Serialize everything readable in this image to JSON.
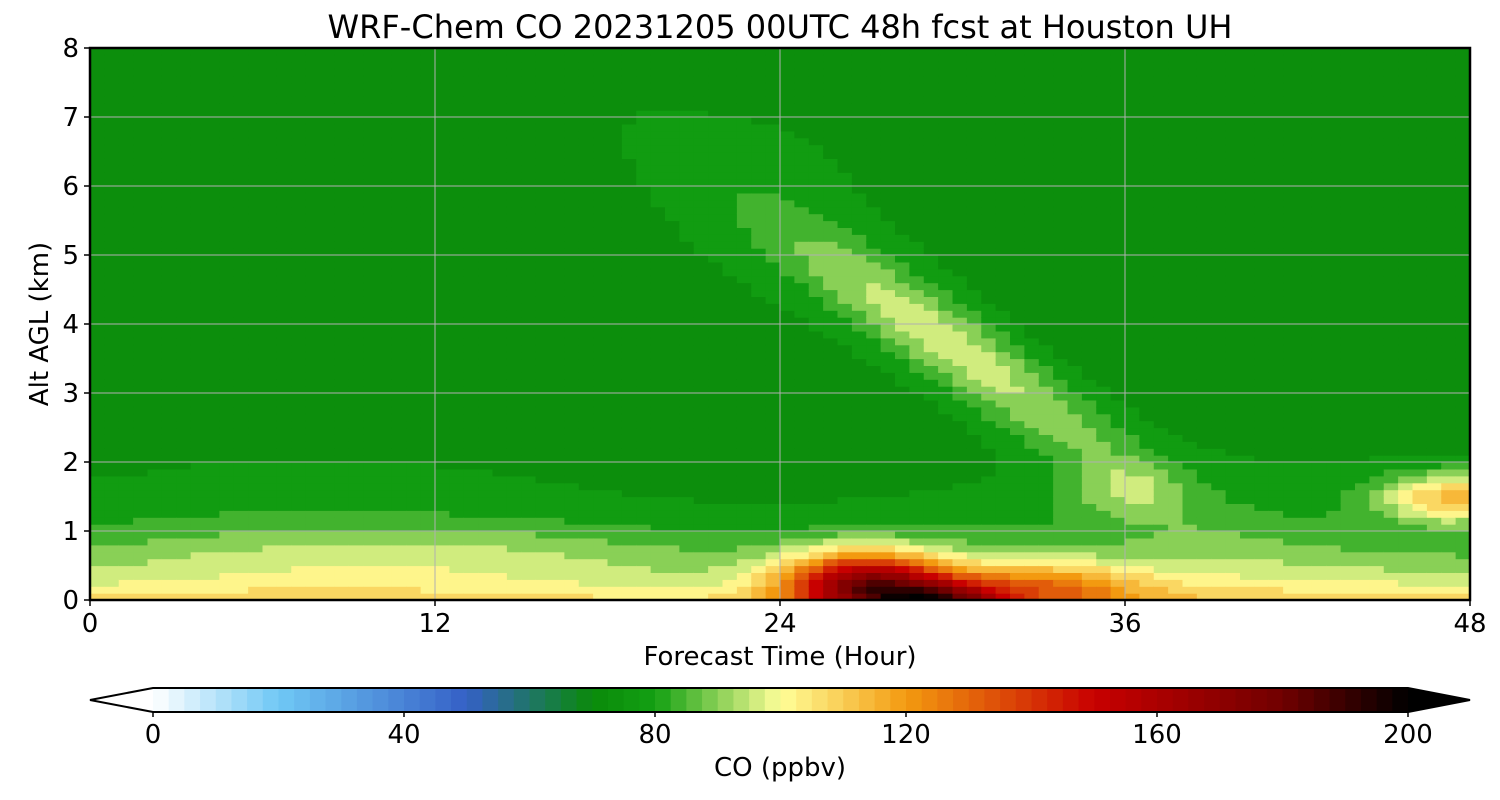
{
  "chart_data": {
    "type": "heatmap",
    "title": "WRF-Chem CO  20231205 00UTC 48h fcst at Houston UH",
    "xlabel": "Forecast Time (Hour)",
    "ylabel": "Alt AGL (km)",
    "xlim": [
      0,
      48
    ],
    "ylim": [
      0,
      8
    ],
    "xticks": [
      0,
      12,
      24,
      36,
      48
    ],
    "yticks": [
      0,
      1,
      2,
      3,
      4,
      5,
      6,
      7,
      8
    ],
    "grid": true,
    "colorbar": {
      "label": "CO  (ppbv)",
      "range": [
        0,
        200
      ],
      "ticks": [
        0,
        40,
        80,
        120,
        160,
        200
      ],
      "extend": "both",
      "stops": [
        {
          "v": 0,
          "c": "#ffffff"
        },
        {
          "v": 20,
          "c": "#6fc8f5"
        },
        {
          "v": 50,
          "c": "#3560c6"
        },
        {
          "v": 70,
          "c": "#0a8a0a"
        },
        {
          "v": 80,
          "c": "#13a013"
        },
        {
          "v": 100,
          "c": "#ffff99"
        },
        {
          "v": 120,
          "c": "#f39a10"
        },
        {
          "v": 150,
          "c": "#c80000"
        },
        {
          "v": 180,
          "c": "#700000"
        },
        {
          "v": 200,
          "c": "#000000"
        }
      ]
    },
    "field_description": "Background CO about 68 to 76 ppbv aloft; values increase toward the surface (about 95 to 125 ppbv below 1 km). Maximum about 160 to 200 ppbv near hour 27, 0 to 0.5 km. A plume of about 90 to 100 ppbv rises from hour 24 at 5 km to hour 36 at 2 km. A secondary maximum of about 115 ppbv near hour 47 at 1.5 km."
  }
}
